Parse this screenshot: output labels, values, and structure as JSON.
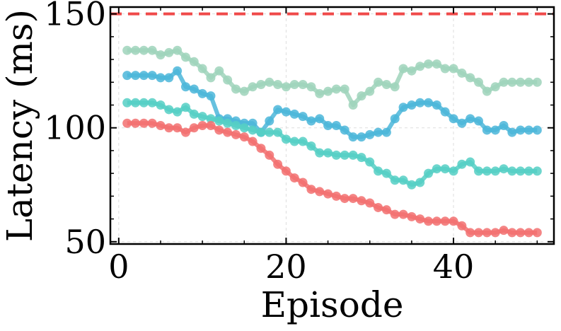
{
  "chart_data": {
    "type": "line",
    "title": "",
    "xlabel": "Episode",
    "ylabel": "Latency (ms)",
    "xlim": [
      -1,
      52
    ],
    "ylim": [
      49,
      153
    ],
    "xticks": [
      0,
      20,
      40
    ],
    "yticks": [
      50,
      100,
      150
    ],
    "grid": true,
    "reference_line": {
      "y": 150,
      "style": "dashed",
      "color": "#f04a4a"
    },
    "x": [
      1,
      2,
      3,
      4,
      5,
      6,
      7,
      8,
      9,
      10,
      11,
      12,
      13,
      14,
      15,
      16,
      17,
      18,
      19,
      20,
      21,
      22,
      23,
      24,
      25,
      26,
      27,
      28,
      29,
      30,
      31,
      32,
      33,
      34,
      35,
      36,
      37,
      38,
      39,
      40,
      41,
      42,
      43,
      44,
      45,
      46,
      47,
      48,
      49,
      50
    ],
    "series": [
      {
        "color": "#9fd3bb",
        "values": [
          134,
          134,
          134,
          134,
          132,
          133,
          134,
          131,
          129,
          126,
          122,
          125,
          121,
          117,
          116,
          118,
          119,
          120,
          119,
          118,
          119,
          119,
          118,
          115,
          116,
          117,
          117,
          110,
          114,
          116,
          120,
          119,
          118,
          126,
          125,
          127,
          128,
          128,
          126,
          126,
          124,
          122,
          120,
          116,
          118,
          120,
          120,
          120,
          120,
          120
        ]
      },
      {
        "color": "#4bb6d9",
        "values": [
          123,
          123,
          123,
          123,
          122,
          122,
          125,
          118,
          117,
          115,
          114,
          104,
          104,
          103,
          102,
          102,
          98,
          103,
          108,
          107,
          106,
          105,
          103,
          104,
          101,
          101,
          99,
          96,
          96,
          97,
          98,
          98,
          104,
          109,
          110,
          111,
          111,
          110,
          107,
          104,
          102,
          104,
          103,
          99,
          99,
          101,
          98,
          99,
          99,
          99
        ]
      },
      {
        "color": "#55cfc4",
        "values": [
          111,
          111,
          111,
          111,
          110,
          108,
          107,
          109,
          106,
          105,
          104,
          103,
          102,
          101,
          100,
          99,
          98,
          98,
          98,
          95,
          94,
          94,
          92,
          89,
          89,
          88,
          88,
          88,
          87,
          85,
          81,
          80,
          77,
          77,
          75,
          76,
          80,
          82,
          82,
          81,
          84,
          85,
          81,
          81,
          81,
          82,
          81,
          81,
          81,
          81
        ]
      },
      {
        "color": "#f27070",
        "values": [
          102,
          102,
          102,
          102,
          101,
          100,
          100,
          98,
          100,
          101,
          101,
          99,
          98,
          97,
          96,
          94,
          91,
          88,
          84,
          81,
          78,
          76,
          73,
          72,
          71,
          70,
          69,
          69,
          68,
          67,
          65,
          64,
          62,
          62,
          61,
          60,
          59,
          59,
          59,
          59,
          57,
          54,
          54,
          54,
          54,
          55,
          54,
          54,
          54,
          54
        ]
      }
    ]
  }
}
